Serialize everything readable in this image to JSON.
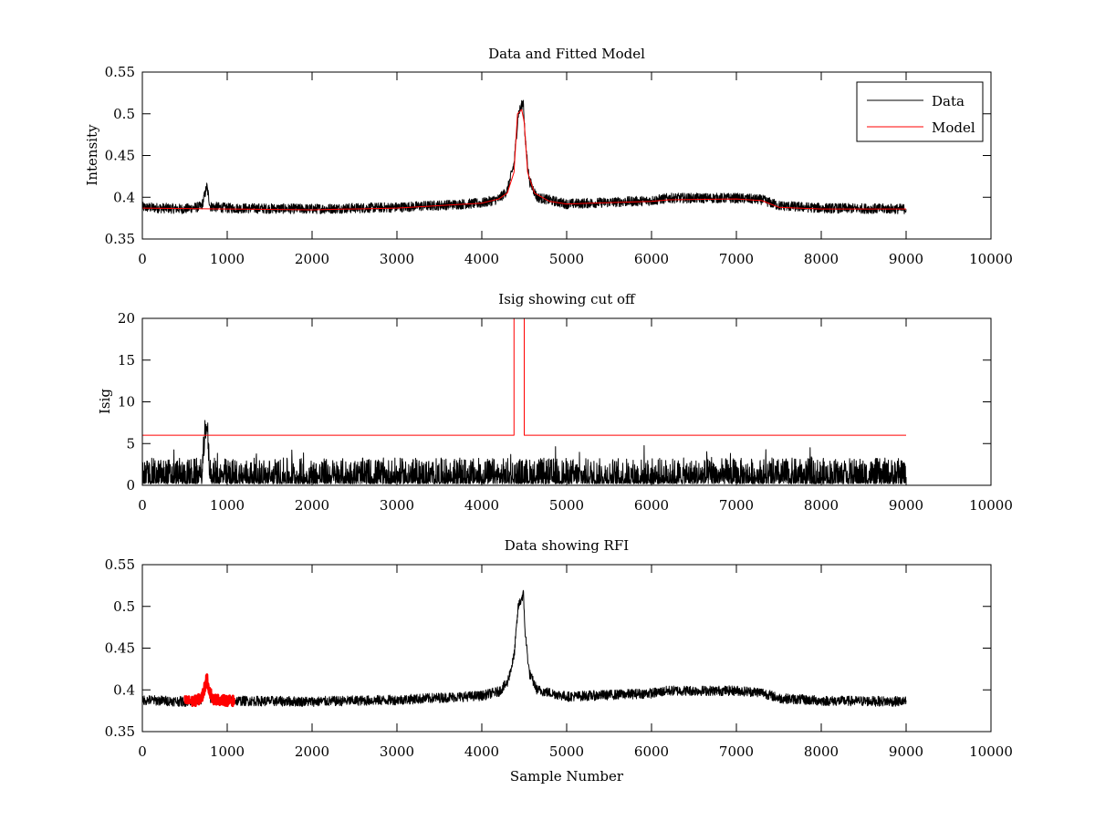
{
  "figure": {
    "background": "#ffffff"
  },
  "chart_data": [
    {
      "type": "line",
      "title": "Data and Fitted Model",
      "xlabel": "",
      "ylabel": "Intensity",
      "xlim": [
        0,
        10000
      ],
      "ylim": [
        0.35,
        0.55
      ],
      "xticks": [
        0,
        1000,
        2000,
        3000,
        4000,
        5000,
        6000,
        7000,
        8000,
        9000,
        10000
      ],
      "yticks": [
        0.35,
        0.4,
        0.45,
        0.5,
        0.55
      ],
      "grid": false,
      "legend": {
        "placement": "top-right",
        "entries": [
          "Data",
          "Model"
        ]
      },
      "series": [
        {
          "name": "Data",
          "color": "#000000",
          "style": "noisy",
          "noise_amplitude": 0.006,
          "x_range": [
            0,
            9000
          ],
          "baseline": [
            [
              0,
              0.388
            ],
            [
              500,
              0.386
            ],
            [
              700,
              0.389
            ],
            [
              760,
              0.413
            ],
            [
              800,
              0.389
            ],
            [
              1000,
              0.387
            ],
            [
              2000,
              0.386
            ],
            [
              3000,
              0.388
            ],
            [
              4000,
              0.393
            ],
            [
              4200,
              0.398
            ],
            [
              4300,
              0.408
            ],
            [
              4380,
              0.44
            ],
            [
              4430,
              0.5
            ],
            [
              4470,
              0.51
            ],
            [
              4490,
              0.515
            ],
            [
              4510,
              0.47
            ],
            [
              4560,
              0.42
            ],
            [
              4650,
              0.4
            ],
            [
              5000,
              0.392
            ],
            [
              6000,
              0.396
            ],
            [
              6200,
              0.399
            ],
            [
              7000,
              0.399
            ],
            [
              7300,
              0.397
            ],
            [
              7500,
              0.39
            ],
            [
              8000,
              0.387
            ],
            [
              9000,
              0.386
            ]
          ]
        },
        {
          "name": "Model",
          "color": "#ff0000",
          "style": "smooth",
          "x_range": [
            0,
            9000
          ],
          "baseline": [
            [
              0,
              0.387
            ],
            [
              1000,
              0.386
            ],
            [
              2000,
              0.385
            ],
            [
              3000,
              0.387
            ],
            [
              4000,
              0.393
            ],
            [
              4200,
              0.398
            ],
            [
              4300,
              0.405
            ],
            [
              4380,
              0.43
            ],
            [
              4420,
              0.5
            ],
            [
              4470,
              0.505
            ],
            [
              4500,
              0.49
            ],
            [
              4540,
              0.43
            ],
            [
              4620,
              0.405
            ],
            [
              4800,
              0.395
            ],
            [
              5000,
              0.392
            ],
            [
              6000,
              0.395
            ],
            [
              6200,
              0.397
            ],
            [
              7000,
              0.398
            ],
            [
              7300,
              0.396
            ],
            [
              7500,
              0.388
            ],
            [
              8000,
              0.386
            ],
            [
              9000,
              0.386
            ]
          ]
        }
      ]
    },
    {
      "type": "line",
      "title": "Isig showing cut off",
      "xlabel": "",
      "ylabel": "Isig",
      "xlim": [
        0,
        10000
      ],
      "ylim": [
        0,
        20
      ],
      "xticks": [
        0,
        1000,
        2000,
        3000,
        4000,
        5000,
        6000,
        7000,
        8000,
        9000,
        10000
      ],
      "yticks": [
        0,
        5,
        10,
        15,
        20
      ],
      "grid": false,
      "series": [
        {
          "color": "#000000",
          "style": "spiky",
          "noise_amplitude": 1.4,
          "x_range": [
            0,
            9000
          ],
          "baseline": [
            [
              0,
              0.2
            ],
            [
              700,
              0.2
            ],
            [
              730,
              4.0
            ],
            [
              760,
              6.8
            ],
            [
              790,
              1.0
            ],
            [
              820,
              0.2
            ],
            [
              9000,
              0.2
            ]
          ]
        },
        {
          "color": "#ff0000",
          "style": "step",
          "x_range": [
            0,
            9000
          ],
          "baseline": [
            [
              0,
              6
            ],
            [
              4380,
              6
            ],
            [
              4380,
              20
            ],
            [
              4500,
              20
            ],
            [
              4500,
              6
            ],
            [
              9000,
              6
            ]
          ]
        }
      ]
    },
    {
      "type": "line",
      "title": "Data showing RFI",
      "xlabel": "Sample Number",
      "ylabel": "",
      "xlim": [
        0,
        10000
      ],
      "ylim": [
        0.35,
        0.55
      ],
      "xticks": [
        0,
        1000,
        2000,
        3000,
        4000,
        5000,
        6000,
        7000,
        8000,
        9000,
        10000
      ],
      "yticks": [
        0.35,
        0.4,
        0.45,
        0.5,
        0.55
      ],
      "grid": false,
      "series": [
        {
          "color": "#000000",
          "style": "noisy",
          "noise_amplitude": 0.006,
          "x_range": [
            0,
            9000
          ],
          "baseline": [
            [
              0,
              0.388
            ],
            [
              500,
              0.386
            ],
            [
              700,
              0.389
            ],
            [
              760,
              0.413
            ],
            [
              800,
              0.389
            ],
            [
              1000,
              0.387
            ],
            [
              2000,
              0.386
            ],
            [
              3000,
              0.388
            ],
            [
              4000,
              0.393
            ],
            [
              4200,
              0.398
            ],
            [
              4300,
              0.408
            ],
            [
              4380,
              0.44
            ],
            [
              4430,
              0.5
            ],
            [
              4470,
              0.51
            ],
            [
              4490,
              0.515
            ],
            [
              4510,
              0.47
            ],
            [
              4560,
              0.42
            ],
            [
              4650,
              0.4
            ],
            [
              5000,
              0.392
            ],
            [
              6000,
              0.396
            ],
            [
              6200,
              0.399
            ],
            [
              7000,
              0.399
            ],
            [
              7300,
              0.397
            ],
            [
              7500,
              0.39
            ],
            [
              8000,
              0.387
            ],
            [
              9000,
              0.386
            ]
          ]
        },
        {
          "color": "#ff0000",
          "style": "noisy-thick",
          "noise_amplitude": 0.006,
          "x_range": [
            500,
            1080
          ],
          "baseline": [
            [
              500,
              0.387
            ],
            [
              600,
              0.386
            ],
            [
              700,
              0.39
            ],
            [
              740,
              0.405
            ],
            [
              760,
              0.413
            ],
            [
              790,
              0.4
            ],
            [
              830,
              0.389
            ],
            [
              1000,
              0.387
            ],
            [
              1080,
              0.387
            ]
          ]
        }
      ]
    }
  ]
}
